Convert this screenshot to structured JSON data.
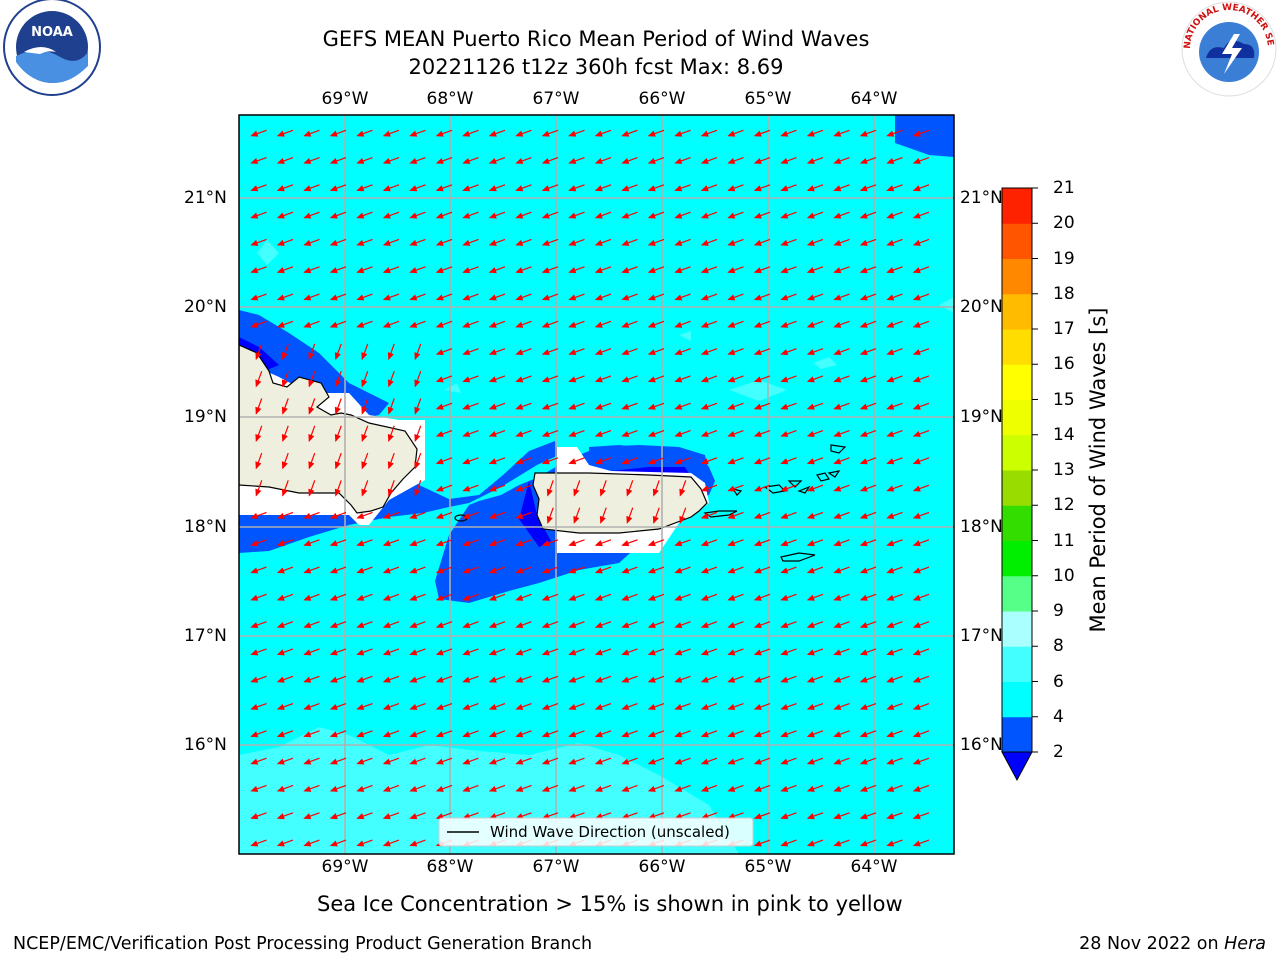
{
  "title": {
    "line1": "GEFS MEAN Puerto Rico Mean Period of Wind Waves",
    "line2": "20221126 t12z 360h fcst   Max: 8.69"
  },
  "map": {
    "lon_ticks": [
      "69°W",
      "68°W",
      "67°W",
      "66°W",
      "65°W",
      "64°W"
    ],
    "lat_ticks": [
      "21°N",
      "20°N",
      "19°N",
      "18°N",
      "17°N",
      "16°N"
    ],
    "ocean_color": "#00ffff",
    "land_color": "#efefdf",
    "arrow_color": "#ff0000",
    "wind_direction": "from east-northeast",
    "legend_label": "Wind Wave Direction (unscaled)"
  },
  "colorbar": {
    "label": "Mean Period of Wind Waves [s]",
    "ticks": [
      "2",
      "4",
      "6",
      "8",
      "9",
      "10",
      "11",
      "12",
      "13",
      "14",
      "15",
      "16",
      "17",
      "18",
      "19",
      "20",
      "21"
    ],
    "colors": [
      "#0055ff",
      "#00ffff",
      "#44ffff",
      "#aaffff",
      "#55ff88",
      "#00ee00",
      "#33dd00",
      "#99dd00",
      "#ccff00",
      "#eeff00",
      "#ffff00",
      "#ffdd00",
      "#ffbb00",
      "#ff8800",
      "#ff5500",
      "#ff2200"
    ],
    "under_color": "#0000ff"
  },
  "sea_ice_note": "Sea Ice Concentration > 15% is shown in pink to yellow",
  "footer": {
    "left": "NCEP/EMC/Verification Post Processing Product Generation Branch",
    "date": "28 Nov 2022 on ",
    "machine": "Hera"
  },
  "logos": {
    "noaa_text": "NOAA",
    "nws_text": "NATIONAL WEATHER SERVICE"
  }
}
